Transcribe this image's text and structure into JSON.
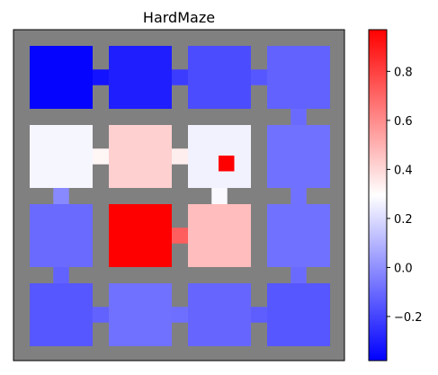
{
  "chart_data": {
    "type": "heatmap",
    "title": "HardMaze",
    "xlabel": "",
    "ylabel": "",
    "grid": false,
    "colormap": {
      "name": "bwr",
      "stops": [
        "#0000ff",
        "#ffffff",
        "#ff0000"
      ],
      "vmin": -0.38,
      "vmax": 0.97
    },
    "colorbar": {
      "ticks": [
        -0.2,
        0.0,
        0.2,
        0.4,
        0.6,
        0.8
      ],
      "tick_labels": [
        "−0.2",
        "0.0",
        "0.2",
        "0.4",
        "0.6",
        "0.8"
      ]
    },
    "wall_color": "#808080",
    "rooms": {
      "rows": 4,
      "cols": 4,
      "values": [
        [
          -0.37,
          -0.3,
          -0.18,
          -0.12
        ],
        [
          0.27,
          0.42,
          0.26,
          -0.08
        ],
        [
          -0.1,
          0.97,
          0.47,
          -0.08
        ],
        [
          -0.15,
          -0.08,
          -0.11,
          -0.15
        ]
      ]
    },
    "goal": {
      "room": [
        1,
        2
      ],
      "cell": [
        3,
        4
      ],
      "value": 0.97
    },
    "passages": [
      {
        "from": [
          0,
          0
        ],
        "to": [
          0,
          1
        ],
        "value": -0.33
      },
      {
        "from": [
          0,
          1
        ],
        "to": [
          0,
          2
        ],
        "value": -0.22
      },
      {
        "from": [
          0,
          2
        ],
        "to": [
          0,
          3
        ],
        "value": -0.15
      },
      {
        "from": [
          0,
          3
        ],
        "to": [
          1,
          3
        ],
        "value": -0.1
      },
      {
        "from": [
          1,
          0
        ],
        "to": [
          1,
          1
        ],
        "value": 0.32
      },
      {
        "from": [
          1,
          1
        ],
        "to": [
          1,
          2
        ],
        "value": 0.34
      },
      {
        "from": [
          1,
          0
        ],
        "to": [
          2,
          0
        ],
        "value": -0.02
      },
      {
        "from": [
          1,
          2
        ],
        "to": [
          2,
          2
        ],
        "value": 0.28
      },
      {
        "from": [
          1,
          3
        ],
        "to": [
          2,
          3
        ],
        "value": -0.08
      },
      {
        "from": [
          2,
          1
        ],
        "to": [
          2,
          2
        ],
        "value": 0.72
      },
      {
        "from": [
          2,
          0
        ],
        "to": [
          3,
          0
        ],
        "value": -0.12
      },
      {
        "from": [
          2,
          3
        ],
        "to": [
          3,
          3
        ],
        "value": -0.1
      },
      {
        "from": [
          3,
          0
        ],
        "to": [
          3,
          1
        ],
        "value": -0.12
      },
      {
        "from": [
          3,
          1
        ],
        "to": [
          3,
          2
        ],
        "value": -0.09
      },
      {
        "from": [
          3,
          2
        ],
        "to": [
          3,
          3
        ],
        "value": -0.13
      }
    ]
  }
}
